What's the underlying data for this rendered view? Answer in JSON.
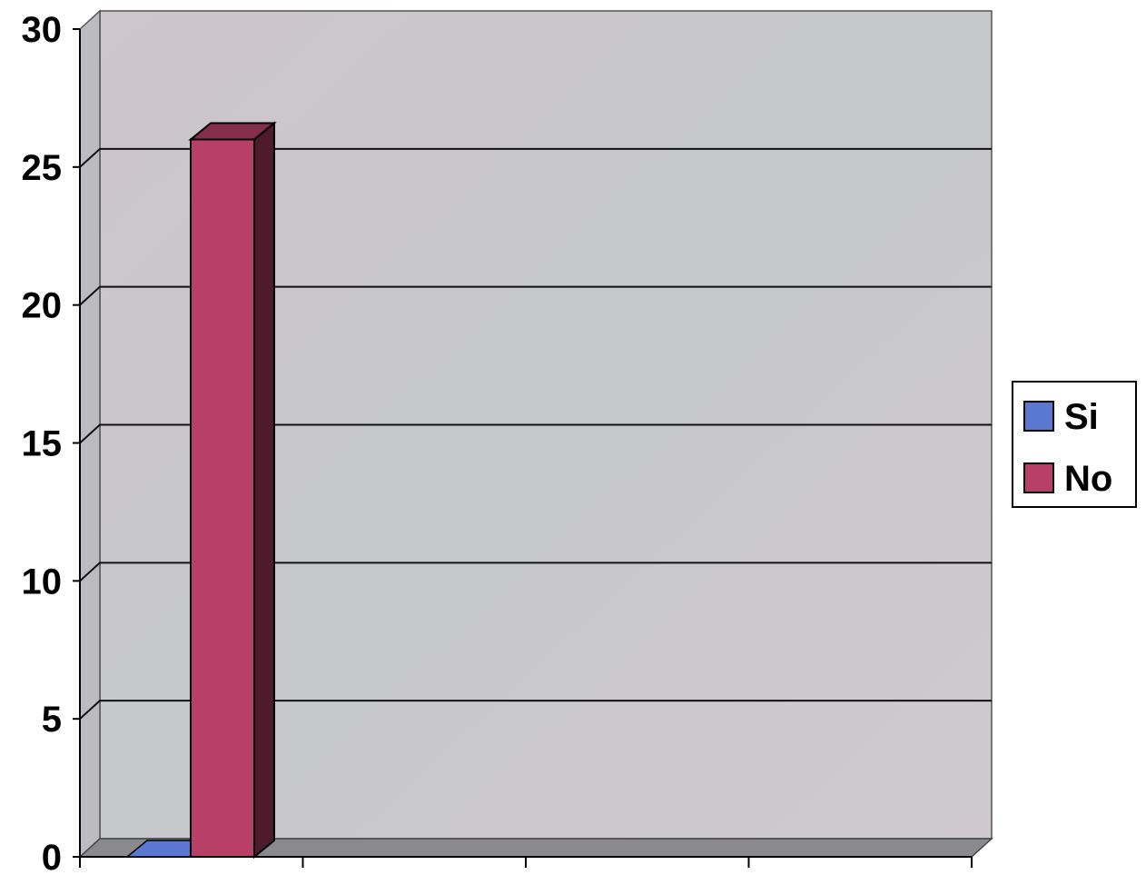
{
  "chart_data": {
    "type": "bar",
    "style": "3d-column",
    "categories": [
      ""
    ],
    "series": [
      {
        "name": "Si",
        "values": [
          0
        ],
        "color": "#5a78d2"
      },
      {
        "name": "No",
        "values": [
          26
        ],
        "color": "#b84068"
      }
    ],
    "ylim": [
      0,
      30
    ],
    "yticks": [
      0,
      5,
      10,
      15,
      20,
      25,
      30
    ],
    "grid": true,
    "legend": "right",
    "colors": {
      "wall": "#c8c8cc",
      "floor": "#8a8a8e",
      "side_wall": "#bcbcc0"
    }
  }
}
